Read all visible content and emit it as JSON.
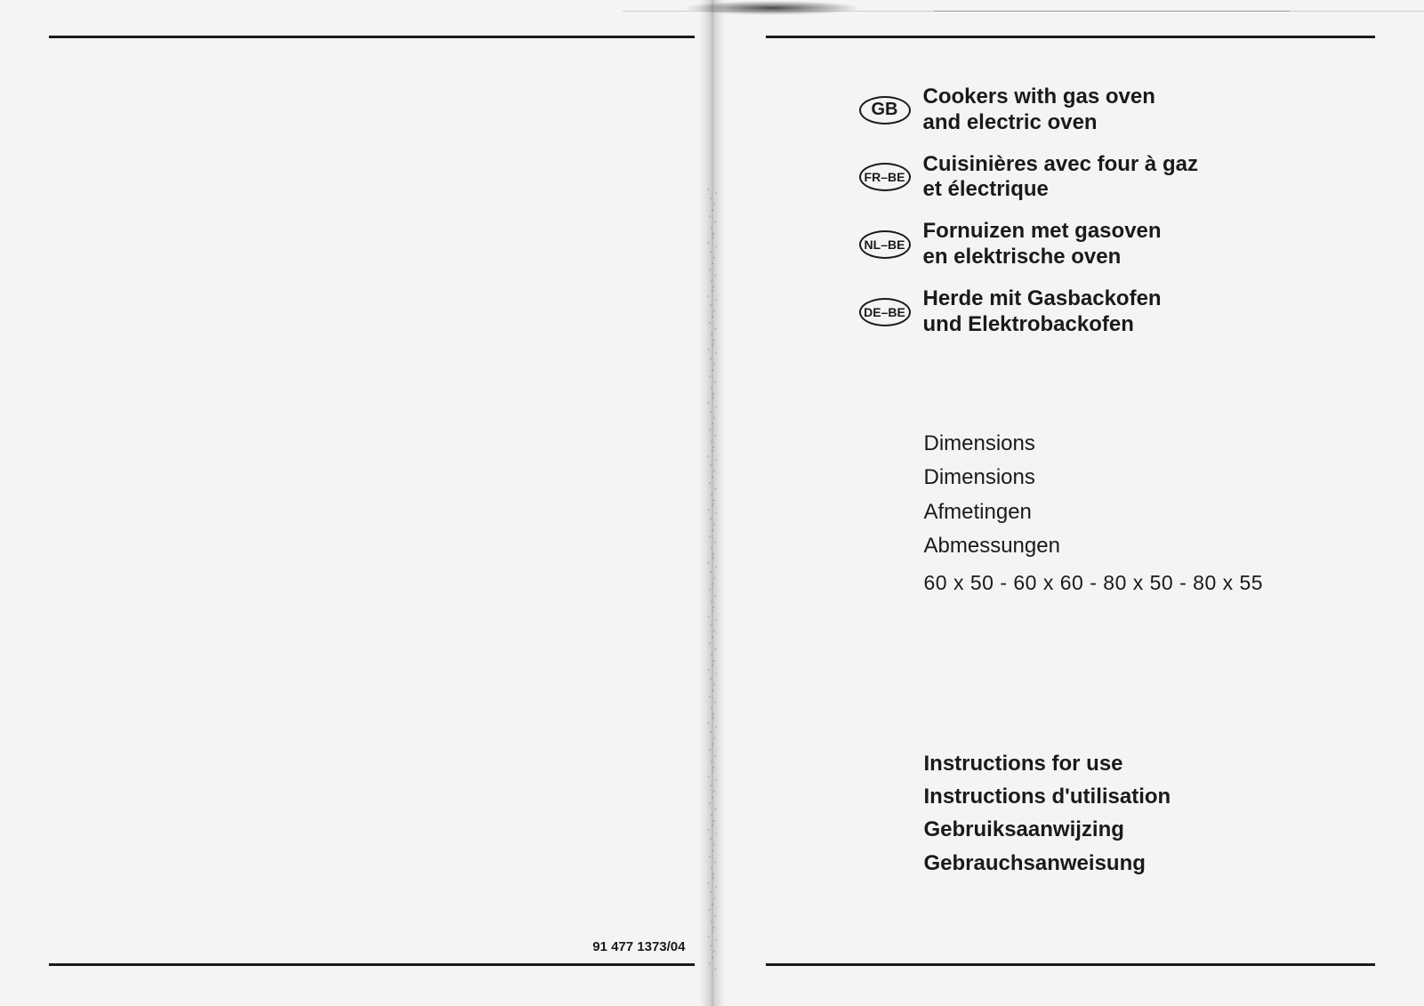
{
  "document": {
    "doc_number": "91 477 1373/04",
    "colors": {
      "background": "#f4f4f2",
      "text": "#1a1a1a",
      "rule": "#1a1a1a"
    },
    "typography": {
      "title_fontsize_pt": 18,
      "body_fontsize_pt": 18,
      "badge_large_fontsize_pt": 15,
      "badge_small_fontsize_pt": 10,
      "docnum_fontsize_pt": 11
    }
  },
  "languages": [
    {
      "code": "GB",
      "badge_size": "large",
      "title_line1": "Cookers with gas oven",
      "title_line2": "and electric oven"
    },
    {
      "code": "FR–BE",
      "badge_size": "small",
      "title_line1": "Cuisinières avec four à gaz",
      "title_line2": "et électrique"
    },
    {
      "code": "NL–BE",
      "badge_size": "small",
      "title_line1": "Fornuizen met gasoven",
      "title_line2": "en elektrische oven"
    },
    {
      "code": "DE–BE",
      "badge_size": "small",
      "title_line1": "Herde mit Gasbackofen",
      "title_line2": "und Elektrobackofen"
    }
  ],
  "dimensions": {
    "labels": [
      "Dimensions",
      "Dimensions",
      "Afmetingen",
      "Abmessungen"
    ],
    "values": "60 x 50 - 60 x 60 - 80 x 50 - 80 x 55"
  },
  "instructions": [
    "Instructions for use",
    "Instructions d'utilisation",
    "Gebruiksaanwijzing",
    "Gebrauchsanweisung"
  ]
}
